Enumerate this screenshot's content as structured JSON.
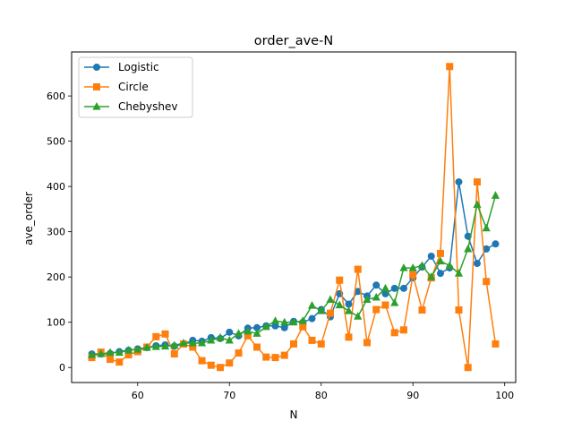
{
  "chart_data": {
    "type": "line",
    "title": "order_ave-N",
    "xlabel": "N",
    "ylabel": "ave_order",
    "xlim": [
      52.8,
      101.2
    ],
    "ylim": [
      -33.2,
      697.2
    ],
    "xticks": [
      60,
      70,
      80,
      90,
      100
    ],
    "yticks": [
      0,
      100,
      200,
      300,
      400,
      500,
      600
    ],
    "grid": false,
    "legend_position": "upper-left",
    "x": [
      55,
      56,
      57,
      58,
      59,
      60,
      61,
      62,
      63,
      64,
      65,
      66,
      67,
      68,
      69,
      70,
      71,
      72,
      73,
      74,
      75,
      76,
      77,
      78,
      79,
      80,
      81,
      82,
      83,
      84,
      85,
      86,
      87,
      88,
      89,
      90,
      91,
      92,
      93,
      94,
      95,
      96,
      97,
      98,
      99
    ],
    "series": [
      {
        "name": "Logistic",
        "color": "#1f77b4",
        "marker": "circle",
        "values": [
          30,
          30,
          31,
          35,
          38,
          41,
          44,
          48,
          50,
          47,
          52,
          60,
          58,
          66,
          64,
          78,
          70,
          87,
          88,
          92,
          92,
          88,
          102,
          100,
          108,
          128,
          112,
          163,
          140,
          168,
          158,
          182,
          163,
          175,
          175,
          198,
          222,
          246,
          208,
          220,
          410,
          290,
          230,
          262,
          273
        ]
      },
      {
        "name": "Circle",
        "color": "#ff7f0e",
        "marker": "square",
        "values": [
          22,
          34,
          18,
          12,
          28,
          35,
          45,
          68,
          74,
          30,
          52,
          45,
          15,
          5,
          0,
          10,
          32,
          70,
          45,
          23,
          22,
          27,
          52,
          90,
          60,
          52,
          120,
          193,
          67,
          217,
          55,
          128,
          138,
          77,
          83,
          205,
          127,
          198,
          252,
          665,
          127,
          0,
          410,
          190,
          52
        ]
      },
      {
        "name": "Chebyshev",
        "color": "#2ca02c",
        "marker": "triangle",
        "values": [
          28,
          30,
          33,
          33,
          38,
          40,
          44,
          46,
          47,
          49,
          54,
          54,
          54,
          60,
          66,
          60,
          75,
          80,
          75,
          90,
          103,
          100,
          100,
          103,
          137,
          125,
          150,
          138,
          125,
          113,
          150,
          155,
          175,
          143,
          220,
          220,
          225,
          200,
          235,
          225,
          208,
          262,
          360,
          308,
          380
        ]
      }
    ]
  }
}
